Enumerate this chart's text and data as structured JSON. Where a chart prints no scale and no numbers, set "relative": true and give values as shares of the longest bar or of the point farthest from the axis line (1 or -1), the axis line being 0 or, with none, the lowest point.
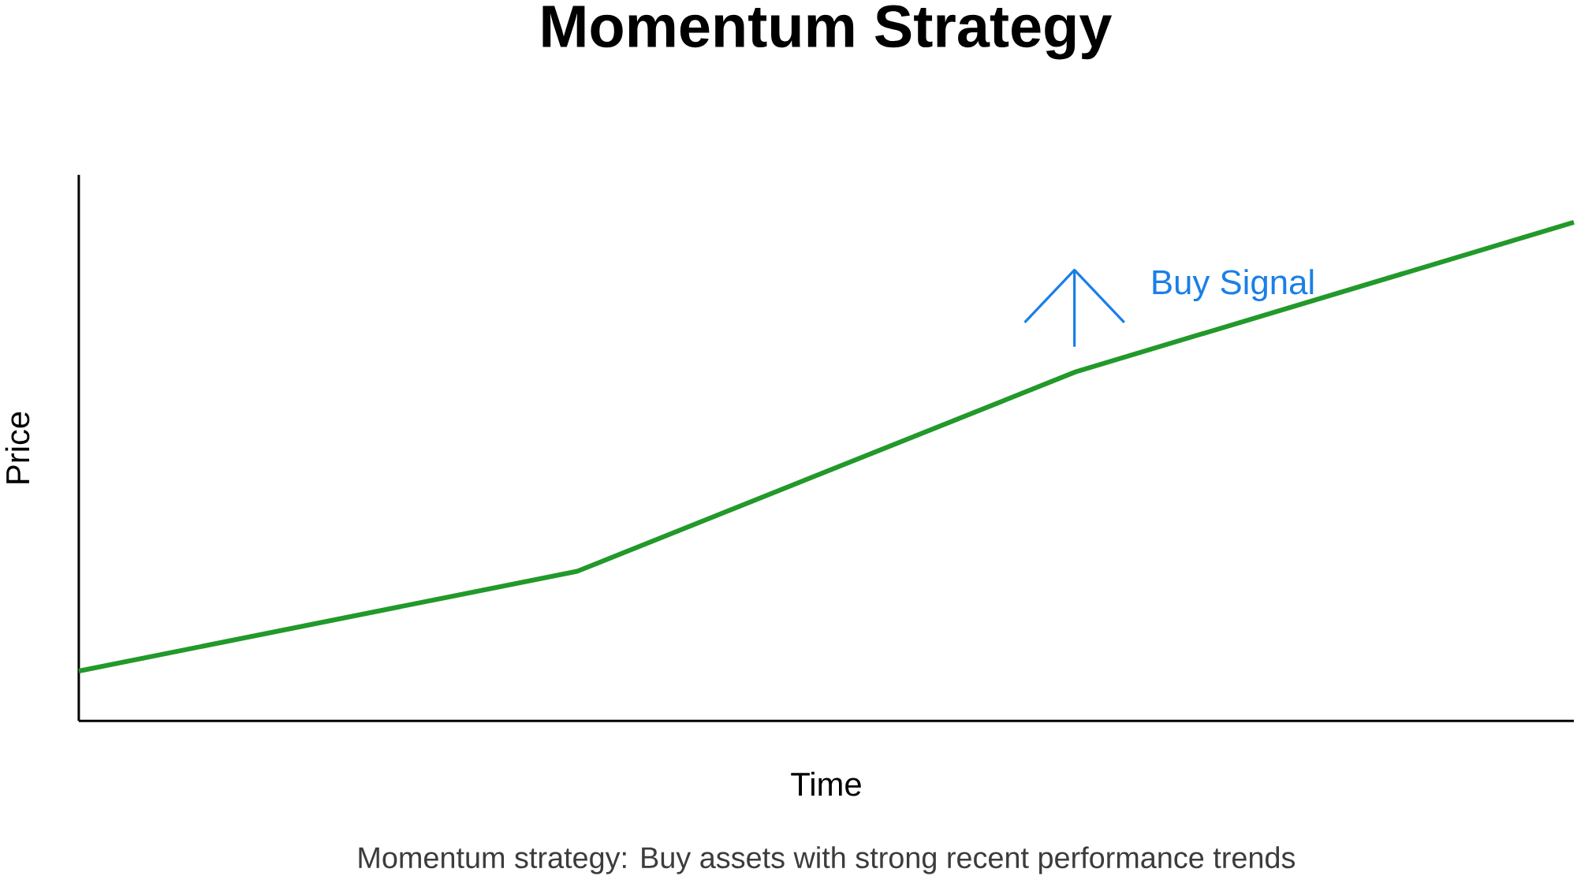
{
  "chart_data": {
    "type": "line",
    "title": "Momentum Strategy",
    "xlabel": "Time",
    "ylabel": "Price",
    "categories": [
      null,
      null,
      null,
      null
    ],
    "relative": true,
    "series": [
      {
        "color": "#22992a",
        "values": [
          0.1,
          0.3,
          0.7,
          1.0
        ]
      }
    ],
    "annotations": [
      "Buy Signal",
      "Momentum strategy: Buy assets with strong recent performance trends"
    ]
  }
}
